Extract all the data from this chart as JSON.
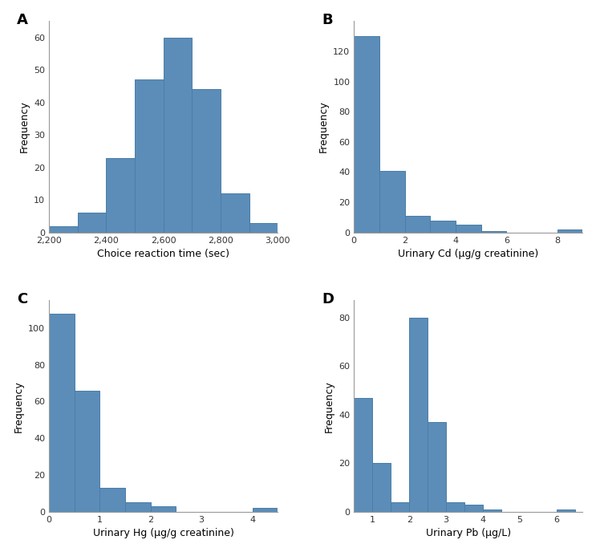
{
  "bar_color": "#5b8db8",
  "bar_edgecolor": "#4a7da8",
  "background": "#ffffff",
  "panels": [
    {
      "label": "A",
      "xlabel": "Choice reaction time (sec)",
      "ylabel": "Frequency",
      "bin_edges": [
        2200,
        2300,
        2400,
        2500,
        2600,
        2700,
        2800,
        2900,
        3000
      ],
      "counts": [
        2,
        6,
        23,
        47,
        60,
        44,
        12,
        3
      ],
      "xticks": [
        2200,
        2400,
        2600,
        2800,
        3000
      ],
      "xticklabels": [
        "2,200",
        "2,400",
        "2,600",
        "2,800",
        "3,000"
      ],
      "yticks": [
        0,
        10,
        20,
        30,
        40,
        50,
        60
      ],
      "ylim": [
        0,
        65
      ],
      "xlim": [
        2200,
        3000
      ]
    },
    {
      "label": "B",
      "xlabel": "Urinary Cd (µg/g creatinine)",
      "ylabel": "Frequency",
      "bin_edges": [
        0,
        1,
        2,
        3,
        4,
        5,
        6,
        7,
        8,
        9
      ],
      "counts": [
        130,
        41,
        11,
        8,
        5,
        1,
        0,
        0,
        2
      ],
      "xticks": [
        0,
        2,
        4,
        6,
        8
      ],
      "xticklabels": [
        "0",
        "2",
        "4",
        "6",
        "8"
      ],
      "yticks": [
        0,
        20,
        40,
        60,
        80,
        100,
        120
      ],
      "ylim": [
        0,
        140
      ],
      "xlim": [
        0,
        9
      ]
    },
    {
      "label": "C",
      "xlabel": "Urinary Hg (µg/g creatinine)",
      "ylabel": "Frequency",
      "bin_edges": [
        0,
        0.5,
        1.0,
        1.5,
        2.0,
        2.5,
        3.0,
        3.5,
        4.0,
        4.5
      ],
      "counts": [
        108,
        66,
        13,
        5,
        3,
        0,
        0,
        0,
        2
      ],
      "xticks": [
        0,
        1,
        2,
        3,
        4
      ],
      "xticklabels": [
        "0",
        "1",
        "2",
        "3",
        "4"
      ],
      "yticks": [
        0,
        20,
        40,
        60,
        80,
        100
      ],
      "ylim": [
        0,
        115
      ],
      "xlim": [
        0,
        4.5
      ]
    },
    {
      "label": "D",
      "xlabel": "Urinary Pb (µg/L)",
      "ylabel": "Frequency",
      "bin_edges": [
        0.5,
        1.0,
        1.5,
        2.0,
        2.5,
        3.0,
        3.5,
        4.0,
        4.5,
        5.0,
        5.5,
        6.0,
        6.5
      ],
      "counts": [
        47,
        20,
        4,
        80,
        37,
        4,
        3,
        1,
        0,
        0,
        0,
        1
      ],
      "xticks": [
        1,
        2,
        3,
        4,
        5,
        6
      ],
      "xticklabels": [
        "1",
        "2",
        "3",
        "4",
        "5",
        "6"
      ],
      "yticks": [
        0,
        20,
        40,
        60,
        80
      ],
      "ylim": [
        0,
        87
      ],
      "xlim": [
        0.5,
        6.7
      ]
    }
  ]
}
